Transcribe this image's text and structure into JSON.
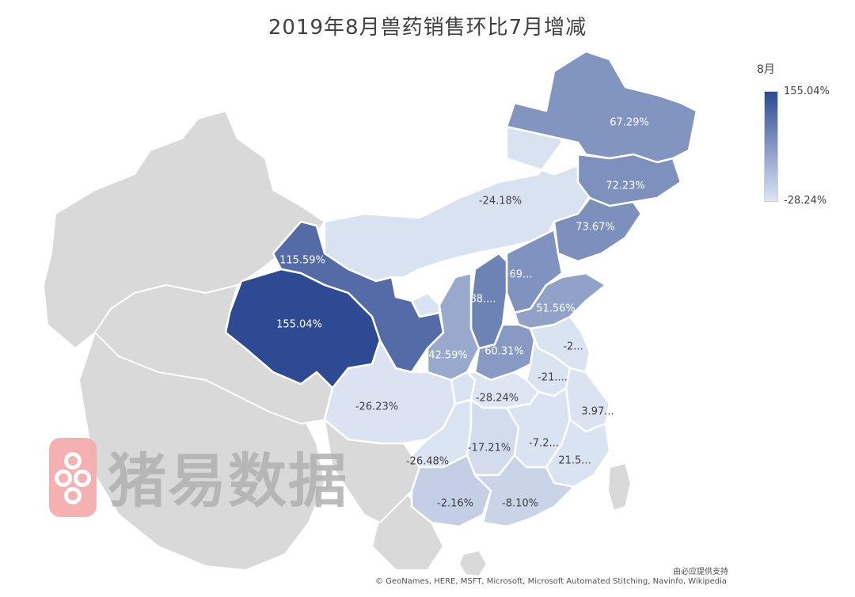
{
  "title": "2019年8月兽药销售环比7月增减",
  "legend": {
    "title": "8月",
    "max_label": "155.04%",
    "min_label": "-28.24%",
    "max_color": "#2e4a92",
    "min_color": "#dde5f3"
  },
  "colors": {
    "foreign_land": "#d9d9d9",
    "border": "#ffffff",
    "light_label_text": "#ffffff",
    "dark_label_text": "#404040"
  },
  "regions": [
    {
      "id": "xinjiang",
      "value": null,
      "label": ""
    },
    {
      "id": "tibet",
      "value": null,
      "label": ""
    },
    {
      "id": "gansu",
      "value": 115.59,
      "label": "115.59%"
    },
    {
      "id": "qinghai",
      "value": 155.04,
      "label": "155.04%"
    },
    {
      "id": "inner-mongolia",
      "value": -24.18,
      "label": "-24.18%"
    },
    {
      "id": "heilongjiang",
      "value": 67.29,
      "label": "67.29%"
    },
    {
      "id": "jilin",
      "value": 72.23,
      "label": "72.23%"
    },
    {
      "id": "liaoning",
      "value": 73.67,
      "label": "73.67%"
    },
    {
      "id": "beijing",
      "value": null,
      "label": ""
    },
    {
      "id": "hebei",
      "value": 69,
      "label": "69..."
    },
    {
      "id": "shanxi",
      "value": 88,
      "label": "88...."
    },
    {
      "id": "shandong",
      "value": 51.56,
      "label": "51.56%"
    },
    {
      "id": "ningxia",
      "value": null,
      "label": ""
    },
    {
      "id": "shaanxi",
      "value": 42.59,
      "label": "42.59%"
    },
    {
      "id": "henan",
      "value": 60.31,
      "label": "60.31%"
    },
    {
      "id": "jiangsu",
      "value": null,
      "label": "-2..."
    },
    {
      "id": "anhui",
      "value": null,
      "label": "-21...."
    },
    {
      "id": "sichuan",
      "value": -26.23,
      "label": "-26.23%"
    },
    {
      "id": "chongqing",
      "value": null,
      "label": ""
    },
    {
      "id": "hubei",
      "value": -28.24,
      "label": "-28.24%"
    },
    {
      "id": "zhejiang",
      "value": null,
      "label": "3.97..."
    },
    {
      "id": "guizhou",
      "value": -26.48,
      "label": "-26.48%"
    },
    {
      "id": "hunan",
      "value": -17.21,
      "label": "-17.21%"
    },
    {
      "id": "jiangxi",
      "value": null,
      "label": "-7.2..."
    },
    {
      "id": "fujian",
      "value": null,
      "label": "21.5..."
    },
    {
      "id": "yunnan",
      "value": null,
      "label": ""
    },
    {
      "id": "guangxi",
      "value": -2.16,
      "label": "-2.16%"
    },
    {
      "id": "guangdong",
      "value": -8.1,
      "label": "-8.10%"
    },
    {
      "id": "hainan",
      "value": null,
      "label": ""
    },
    {
      "id": "taiwan",
      "value": null,
      "label": ""
    }
  ],
  "watermark": {
    "text": "猪易数据"
  },
  "credits": {
    "line1": "由必应提供支持",
    "line2": "© GeoNames, HERE, MSFT, Microsoft, Microsoft Automated Stitching, Navinfo, Wikipedia"
  }
}
